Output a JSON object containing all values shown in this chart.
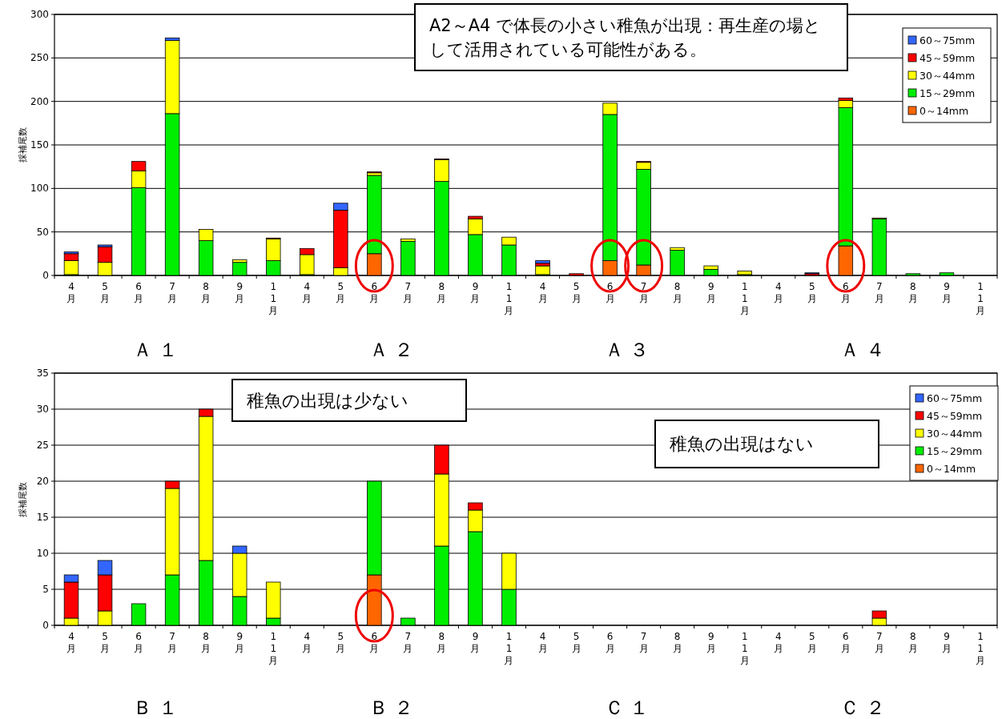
{
  "chart_data": [
    {
      "type": "bar",
      "stacked": true,
      "ylabel": "採補尾数",
      "legend": "top right",
      "grid": "y",
      "categories": [
        "4月",
        "5月",
        "6月",
        "7月",
        "8月",
        "9月",
        "11月",
        "4月",
        "5月",
        "6月",
        "7月",
        "8月",
        "9月",
        "11月",
        "4月",
        "5月",
        "6月",
        "7月",
        "8月",
        "9月",
        "11月",
        "4月",
        "5月",
        "6月",
        "7月",
        "8月",
        "9月",
        "11月"
      ],
      "ylim": [
        0,
        300
      ],
      "yticks": [
        0,
        50,
        100,
        150,
        200,
        250,
        300
      ],
      "series": [
        {
          "name": "0～14mm",
          "color": "#ff6600",
          "values": [
            0,
            0,
            0,
            0,
            0,
            0,
            0,
            0,
            0,
            25,
            0,
            0,
            0,
            0,
            0,
            0,
            17,
            12,
            0,
            0,
            0,
            0,
            0,
            34,
            0,
            0,
            0,
            0
          ]
        },
        {
          "name": "15～29mm",
          "color": "#00ee00",
          "values": [
            1,
            0,
            101,
            186,
            40,
            15,
            17,
            1,
            0,
            90,
            39,
            108,
            47,
            35,
            1,
            0,
            168,
            110,
            29,
            7,
            1,
            0,
            0,
            159,
            65,
            2,
            3,
            0
          ]
        },
        {
          "name": "30～44mm",
          "color": "#ffff00",
          "values": [
            16,
            15,
            19,
            84,
            13,
            3,
            25,
            23,
            9,
            3,
            3,
            25,
            18,
            9,
            10,
            0,
            13,
            8,
            3,
            4,
            4,
            0,
            0,
            8,
            1,
            0,
            0,
            0
          ]
        },
        {
          "name": "45～59mm",
          "color": "#ff0000",
          "values": [
            8,
            18,
            11,
            0,
            0,
            0,
            1,
            7,
            66,
            1,
            0,
            1,
            3,
            0,
            3,
            2,
            0,
            1,
            0,
            0,
            0,
            0,
            2,
            3,
            0,
            0,
            0,
            0
          ]
        },
        {
          "name": "60～75mm",
          "color": "#3366ff",
          "values": [
            2,
            2,
            0,
            3,
            0,
            0,
            0,
            0,
            8,
            0,
            0,
            0,
            0,
            0,
            3,
            0,
            0,
            0,
            0,
            0,
            0,
            0,
            1,
            0,
            0,
            0,
            0,
            0
          ]
        }
      ],
      "annotations": [
        "A2～A4 で体長の小さい稚魚が出現：再生産の場として活用されている可能性がある。",
        "Ａ １",
        "Ａ ２",
        "Ａ ３",
        "Ａ ４"
      ]
    },
    {
      "type": "bar",
      "stacked": true,
      "ylabel": "採補尾数",
      "legend": "top right",
      "grid": "y",
      "categories": [
        "4月",
        "5月",
        "6月",
        "7月",
        "8月",
        "9月",
        "11月",
        "4月",
        "5月",
        "6月",
        "7月",
        "8月",
        "9月",
        "11月",
        "4月",
        "5月",
        "6月",
        "7月",
        "8月",
        "9月",
        "11月",
        "4月",
        "5月",
        "6月",
        "7月",
        "8月",
        "9月",
        "11月"
      ],
      "ylim": [
        0,
        35
      ],
      "yticks": [
        0,
        5,
        10,
        15,
        20,
        25,
        30,
        35
      ],
      "series": [
        {
          "name": "0～14mm",
          "color": "#ff6600",
          "values": [
            0,
            0,
            0,
            0,
            0,
            0,
            0,
            0,
            0,
            7,
            0,
            0,
            0,
            0,
            0,
            0,
            0,
            0,
            0,
            0,
            0,
            0,
            0,
            0,
            0,
            0,
            0,
            0
          ]
        },
        {
          "name": "15～29mm",
          "color": "#00ee00",
          "values": [
            0,
            0,
            3,
            7,
            9,
            4,
            1,
            0,
            0,
            13,
            1,
            11,
            13,
            5,
            0,
            0,
            0,
            0,
            0,
            0,
            0,
            0,
            0,
            0,
            0,
            0,
            0,
            0
          ]
        },
        {
          "name": "30～44mm",
          "color": "#ffff00",
          "values": [
            1,
            2,
            0,
            12,
            20,
            6,
            5,
            0,
            0,
            0,
            0,
            10,
            3,
            5,
            0,
            0,
            0,
            0,
            0,
            0,
            0,
            0,
            0,
            0,
            1,
            0,
            0,
            0
          ]
        },
        {
          "name": "45～59mm",
          "color": "#ff0000",
          "values": [
            5,
            5,
            0,
            1,
            1,
            0,
            0,
            0,
            0,
            0,
            0,
            4,
            1,
            0,
            0,
            0,
            0,
            0,
            0,
            0,
            0,
            0,
            0,
            0,
            1,
            0,
            0,
            0
          ]
        },
        {
          "name": "60～75mm",
          "color": "#3366ff",
          "values": [
            1,
            2,
            0,
            0,
            0,
            1,
            0,
            0,
            0,
            0,
            0,
            0,
            0,
            0,
            0,
            0,
            0,
            0,
            0,
            0,
            0,
            0,
            0,
            0,
            0,
            0,
            0,
            0
          ]
        }
      ],
      "annotations": [
        "稚魚の出現は少ない",
        "稚魚の出現はない",
        "Ｂ １",
        "Ｂ ２",
        "Ｃ １",
        "Ｃ ２"
      ]
    }
  ]
}
